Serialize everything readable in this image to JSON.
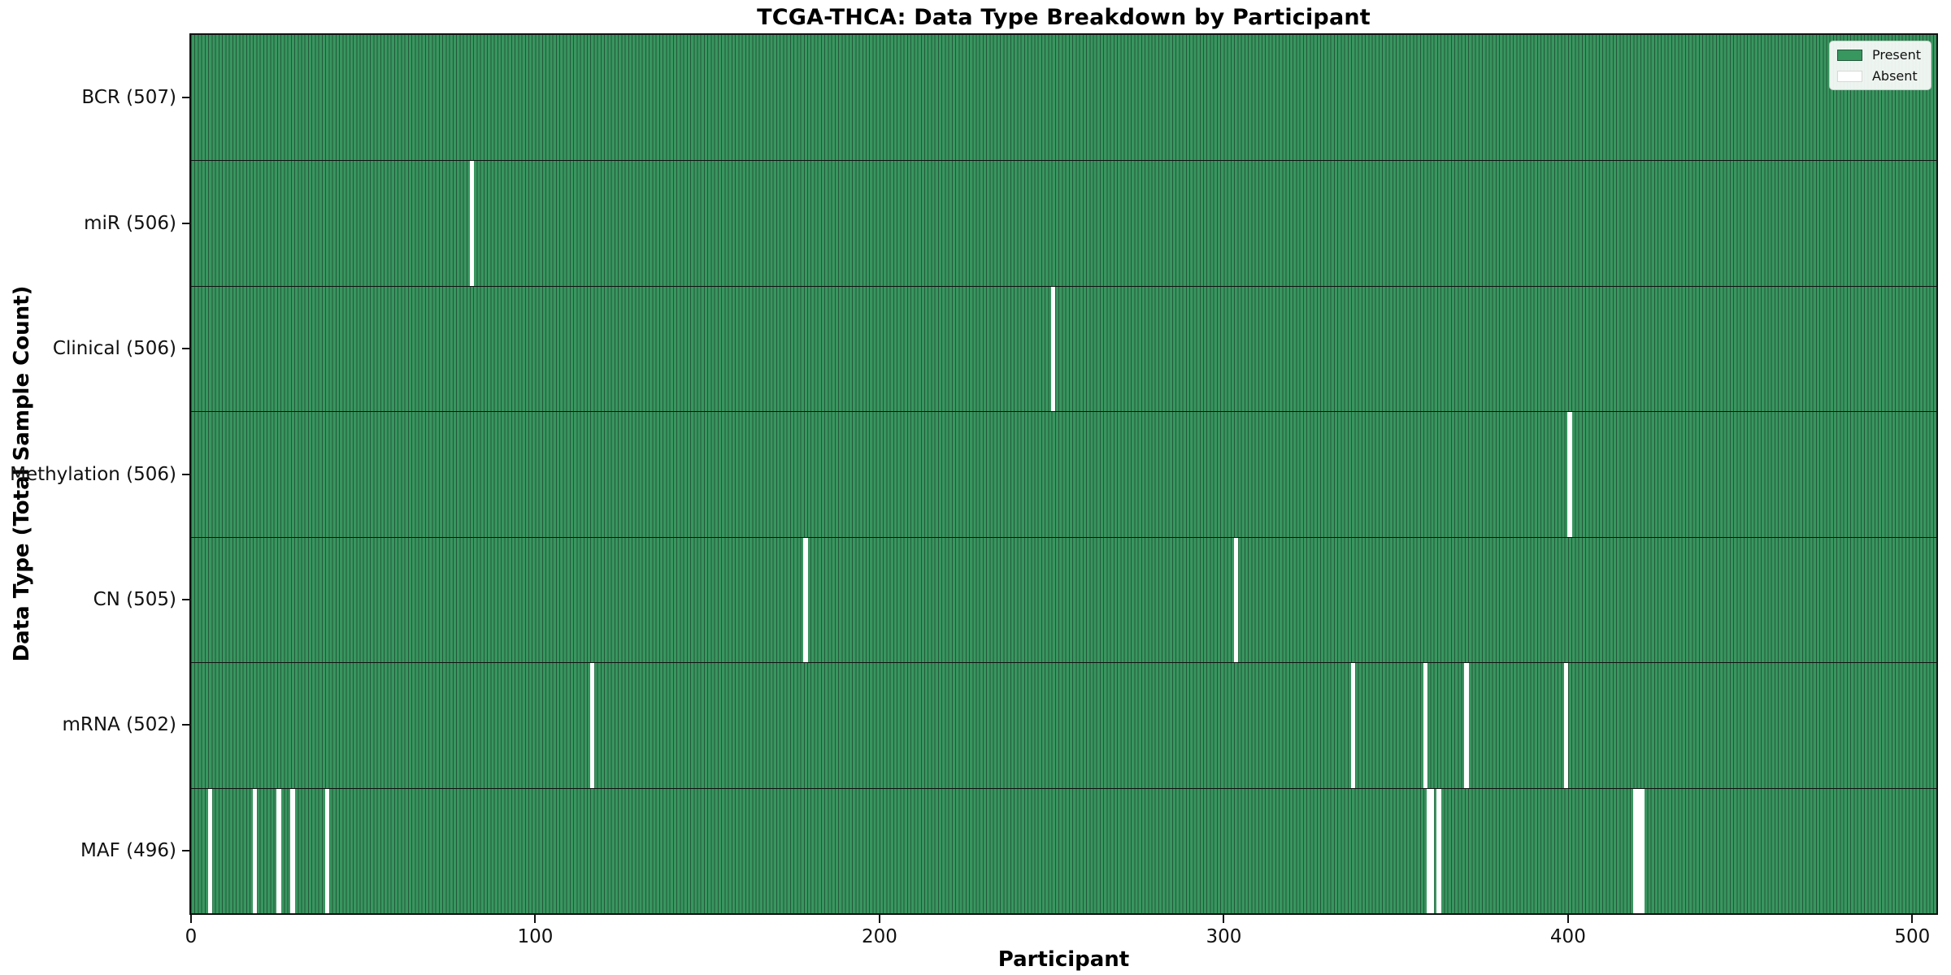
{
  "title": "TCGA-THCA: Data Type Breakdown by Participant",
  "chart_data": {
    "type": "heatmap",
    "title": "TCGA-THCA: Data Type Breakdown by Participant",
    "xlabel": "Participant",
    "ylabel": "Data Type (Total Sample Count)",
    "x_ticks": [
      0,
      100,
      200,
      300,
      400,
      500
    ],
    "x_range": [
      0,
      507
    ],
    "n_participants": 507,
    "grid": false,
    "legend": {
      "position": "upper right",
      "entries": [
        "Present",
        "Absent"
      ]
    },
    "rows": [
      {
        "label": "BCR (507)",
        "total": 507,
        "absent": []
      },
      {
        "label": "miR (506)",
        "total": 506,
        "absent": [
          81
        ]
      },
      {
        "label": "Clinical (506)",
        "total": 506,
        "absent": [
          250
        ]
      },
      {
        "label": "Methylation (506)",
        "total": 506,
        "absent": [
          400
        ]
      },
      {
        "label": "CN (505)",
        "total": 505,
        "absent": [
          178,
          303
        ]
      },
      {
        "label": "mRNA (502)",
        "total": 502,
        "absent": [
          116,
          337,
          358,
          370,
          399
        ]
      },
      {
        "label": "MAF (496)",
        "total": 496,
        "absent": [
          5,
          18,
          25,
          29,
          39,
          359,
          360,
          362,
          419,
          420,
          421
        ]
      }
    ],
    "colors": {
      "present_fill": "#38965f",
      "present_edge": "#24573a",
      "absent_fill": "#ffffff",
      "row_divider": "#111111",
      "spine": "#111111",
      "legend_border": "#cccccc"
    }
  }
}
